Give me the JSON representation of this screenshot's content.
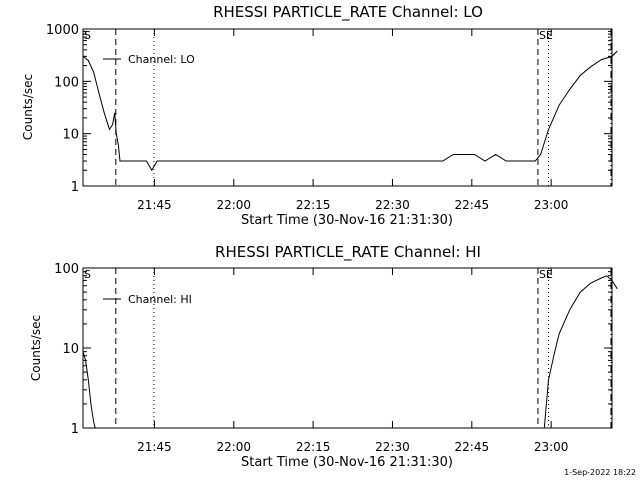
{
  "footer": {
    "date_stamp": "1-Sep-2022 18:22"
  },
  "chart_data": [
    {
      "type": "line",
      "title": "RHESSI PARTICLE_RATE Channel: LO",
      "xlabel": "Start Time (30-Nov-16 21:31:30)",
      "ylabel": "Counts/sec",
      "yscale": "log",
      "ylim": [
        1,
        1000
      ],
      "xlim_minutes": [
        0,
        100
      ],
      "x_tick_labels": [
        "21:45",
        "22:00",
        "22:15",
        "22:30",
        "22:45",
        "23:00"
      ],
      "x_tick_minutes": [
        13.5,
        28.5,
        43.5,
        58.5,
        73.5,
        88.5
      ],
      "y_tick_labels": [
        "1",
        "10",
        "100",
        "1000"
      ],
      "y_tick_values": [
        1,
        10,
        100,
        1000
      ],
      "markers": [
        {
          "label": "S",
          "minute": 0,
          "style": "solid"
        },
        {
          "label": "",
          "minute": 6.2,
          "style": "dashed"
        },
        {
          "label": "",
          "minute": 13.4,
          "style": "dotted"
        },
        {
          "label": "SE",
          "minute": 86.0,
          "style": "dashed"
        },
        {
          "label": "",
          "minute": 88.0,
          "style": "dotted"
        },
        {
          "label": "",
          "minute": 101.3,
          "style": "dashdot"
        }
      ],
      "series": [
        {
          "name": "Channel: LO",
          "x_minutes": [
            0,
            1,
            2,
            3,
            4,
            5,
            5.6,
            6,
            6.3,
            6.7,
            7,
            8,
            9,
            10,
            12,
            13,
            14,
            16,
            18,
            20,
            22,
            24,
            26,
            28,
            30,
            32,
            34,
            36,
            38,
            40,
            42,
            44,
            46,
            48,
            50,
            52,
            54,
            56,
            58,
            60,
            62,
            64,
            66,
            68,
            70,
            72,
            74,
            76,
            78,
            80,
            82,
            84,
            85.5,
            86.5,
            88,
            90,
            92,
            94,
            96,
            98,
            100,
            101
          ],
          "values": [
            300,
            250,
            150,
            60,
            25,
            12,
            15,
            25,
            10,
            6,
            3,
            3,
            3,
            3,
            3,
            2,
            3,
            3,
            3,
            3,
            3,
            3,
            3,
            3,
            3,
            3,
            3,
            3,
            3,
            3,
            3,
            3,
            3,
            3,
            3,
            3,
            3,
            3,
            3,
            3,
            3,
            3,
            3,
            3,
            4,
            4,
            4,
            3,
            4,
            3,
            3,
            3,
            3,
            4,
            12,
            35,
            70,
            130,
            190,
            260,
            300,
            380
          ]
        }
      ]
    },
    {
      "type": "line",
      "title": "RHESSI PARTICLE_RATE Channel: HI",
      "xlabel": "Start Time (30-Nov-16 21:31:30)",
      "ylabel": "Counts/sec",
      "yscale": "log",
      "ylim": [
        1,
        100
      ],
      "xlim_minutes": [
        0,
        100
      ],
      "x_tick_labels": [
        "21:45",
        "22:00",
        "22:15",
        "22:30",
        "22:45",
        "23:00"
      ],
      "x_tick_minutes": [
        13.5,
        28.5,
        43.5,
        58.5,
        73.5,
        88.5
      ],
      "y_tick_labels": [
        "1",
        "10",
        "100"
      ],
      "y_tick_values": [
        1,
        10,
        100
      ],
      "markers": [
        {
          "label": "S",
          "minute": 0,
          "style": "solid"
        },
        {
          "label": "",
          "minute": 6.2,
          "style": "dashed"
        },
        {
          "label": "",
          "minute": 13.4,
          "style": "dotted"
        },
        {
          "label": "SE",
          "minute": 86.0,
          "style": "dashed"
        },
        {
          "label": "",
          "minute": 88.0,
          "style": "dotted"
        },
        {
          "label": "",
          "minute": 101.3,
          "style": "dashdot"
        }
      ],
      "series": [
        {
          "name": "Channel: HI",
          "segments": [
            {
              "x_minutes": [
                0,
                0.5,
                1,
                1.5,
                2,
                2.3
              ],
              "values": [
                9,
                7,
                4,
                2,
                1.2,
                1
              ]
            },
            {
              "x_minutes": [
                87.2,
                88,
                89,
                90,
                92,
                94,
                96,
                98,
                99,
                100,
                101
              ],
              "values": [
                1,
                4,
                8,
                15,
                30,
                50,
                65,
                75,
                80,
                70,
                55
              ]
            }
          ]
        }
      ]
    }
  ]
}
